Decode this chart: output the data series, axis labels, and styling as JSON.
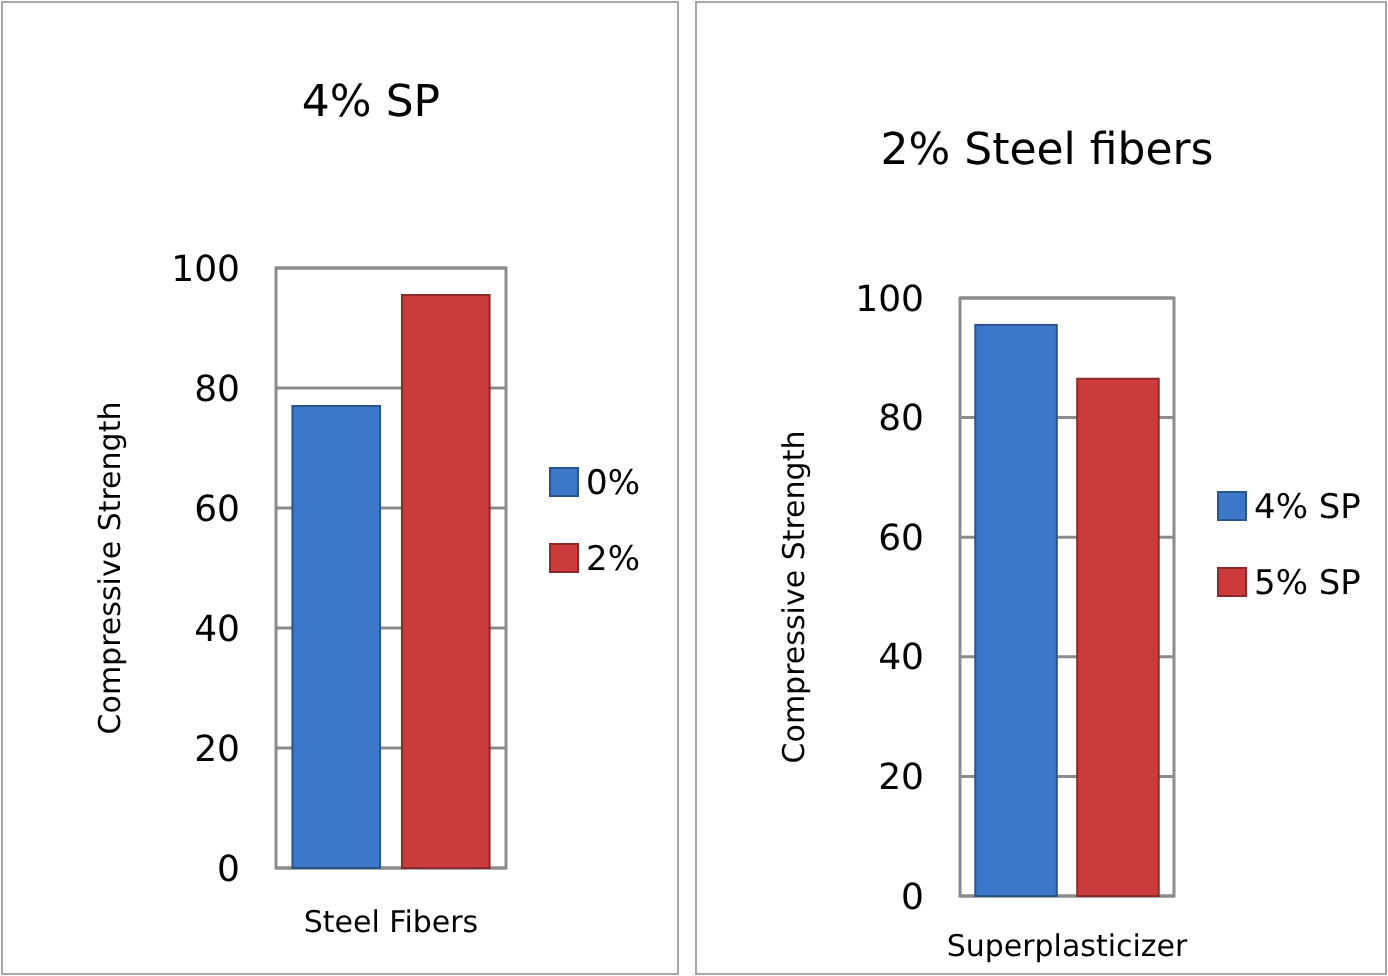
{
  "chart_data": [
    {
      "type": "bar",
      "title": "4% SP",
      "xlabel": "Steel Fibers",
      "ylabel": "Compressive Strength",
      "categories": [
        null
      ],
      "series": [
        {
          "name": "0%",
          "color": "#3b78c8",
          "values": [
            77
          ]
        },
        {
          "name": "2%",
          "color": "#cc3b3b",
          "values": [
            95.5
          ]
        }
      ],
      "ylim": [
        0,
        100
      ],
      "yticks": [
        0,
        20,
        40,
        60,
        80,
        100
      ],
      "grid": "y",
      "legend": "right"
    },
    {
      "type": "bar",
      "title": "2% Steel fibers",
      "xlabel": "Superplasticizer",
      "ylabel": "Compressive Strength",
      "categories": [
        null
      ],
      "series": [
        {
          "name": "4% SP",
          "color": "#3b78c8",
          "values": [
            95.5
          ]
        },
        {
          "name": "5% SP",
          "color": "#cc3b3b",
          "values": [
            86.5
          ]
        }
      ],
      "ylim": [
        0,
        100
      ],
      "yticks": [
        0,
        20,
        40,
        60,
        80,
        100
      ],
      "grid": "y",
      "legend": "right"
    }
  ]
}
